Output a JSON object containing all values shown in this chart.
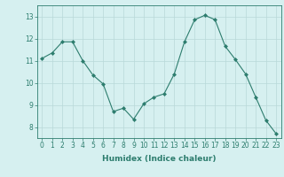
{
  "x": [
    0,
    1,
    2,
    3,
    4,
    5,
    6,
    7,
    8,
    9,
    10,
    11,
    12,
    13,
    14,
    15,
    16,
    17,
    18,
    19,
    20,
    21,
    22,
    23
  ],
  "y": [
    11.1,
    11.35,
    11.85,
    11.85,
    11.0,
    10.35,
    9.95,
    8.7,
    8.85,
    8.35,
    9.05,
    9.35,
    9.5,
    10.4,
    11.85,
    12.85,
    13.05,
    12.85,
    11.65,
    11.05,
    10.4,
    9.35,
    8.3,
    7.7
  ],
  "line_color": "#2d7d6e",
  "marker": "D",
  "marker_size": 2.0,
  "bg_color": "#d6f0f0",
  "grid_color": "#b8d8d8",
  "xlabel": "Humidex (Indice chaleur)",
  "xlim": [
    -0.5,
    23.5
  ],
  "ylim": [
    7.5,
    13.5
  ],
  "yticks": [
    8,
    9,
    10,
    11,
    12,
    13
  ],
  "xticks": [
    0,
    1,
    2,
    3,
    4,
    5,
    6,
    7,
    8,
    9,
    10,
    11,
    12,
    13,
    14,
    15,
    16,
    17,
    18,
    19,
    20,
    21,
    22,
    23
  ],
  "tick_color": "#2d7d6e",
  "label_fontsize": 6.5,
  "tick_fontsize": 5.5,
  "spine_color": "#2d7d6e"
}
